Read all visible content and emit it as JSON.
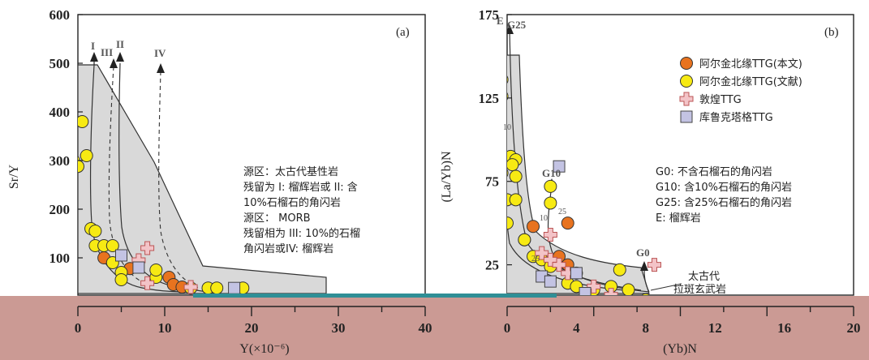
{
  "colors": {
    "orange": "#e8731f",
    "yellow": "#f7ea13",
    "pink": "#f3c3c7",
    "lavender": "#c3c3e3",
    "field": "#d9d9d9",
    "band": "#c7928c",
    "band_accent": "#2f8f96"
  },
  "chart_data": [
    {
      "type": "scatter",
      "panel_label": "(a)",
      "xlabel": "Y(×10⁻⁶)",
      "ylabel": "Sr/Y",
      "xlim": [
        0,
        40
      ],
      "ylim": [
        0,
        600
      ],
      "xticks": [
        "0",
        "10",
        "20",
        "30",
        "40"
      ],
      "yticks": [
        "100",
        "200",
        "300",
        "400",
        "500",
        "600"
      ],
      "curve_labels": [
        "I",
        "III",
        "II",
        "IV"
      ],
      "annotation_lines": [
        "源区：太古代基性岩",
        "残留为 I: 榴辉岩或 II: 含",
        "10%石榴石的角闪岩",
        "源区： MORB",
        "残留相为 III: 10%的石榴",
        "角闪岩或IV: 榴辉岩"
      ],
      "series": [
        {
          "name": "阿尔金北缘TTG(本文)",
          "marker": "circle",
          "color": "orange",
          "points": [
            [
              3,
              100
            ],
            [
              6,
              78
            ],
            [
              10.5,
              60
            ],
            [
              11,
              45
            ],
            [
              12,
              40
            ]
          ]
        },
        {
          "name": "阿尔金北缘TTG(文献)",
          "marker": "circle",
          "color": "yellow",
          "points": [
            [
              0.5,
              380
            ],
            [
              -0.5,
              300
            ],
            [
              0,
              288
            ],
            [
              1,
              310
            ],
            [
              1.5,
              160
            ],
            [
              2,
              155
            ],
            [
              2,
              125
            ],
            [
              3,
              125
            ],
            [
              4,
              125
            ],
            [
              4,
              90
            ],
            [
              5,
              70
            ],
            [
              5,
              55
            ],
            [
              9,
              60
            ],
            [
              9,
              75
            ],
            [
              13,
              38
            ],
            [
              15,
              38
            ],
            [
              16,
              38
            ],
            [
              19,
              38
            ]
          ]
        },
        {
          "name": "敦煌TTG",
          "marker": "cross",
          "color": "pink",
          "points": [
            [
              8,
              120
            ],
            [
              7,
              95
            ],
            [
              8,
              48
            ],
            [
              13,
              40
            ]
          ]
        },
        {
          "name": "库鲁克塔格TTG",
          "marker": "square",
          "color": "lavender",
          "points": [
            [
              5,
              105
            ],
            [
              7,
              80
            ],
            [
              18,
              38
            ]
          ]
        }
      ]
    },
    {
      "type": "scatter",
      "panel_label": "(b)",
      "xlabel": "(Yb)N",
      "ylabel": "(La/Yb)N",
      "xlim": [
        0,
        20
      ],
      "ylim": [
        0,
        175
      ],
      "xticks": [
        "0",
        "4",
        "8",
        "12",
        "16",
        "20"
      ],
      "yticks": [
        "25",
        "75",
        "125",
        "175"
      ],
      "curve_labels": [
        "E",
        "G25",
        "G10",
        "G0"
      ],
      "curve_tick_labels": [
        "10",
        "10",
        "25",
        "25"
      ],
      "legend": [
        "阿尔金北缘TTG(本文)",
        "阿尔金北缘TTG(文献)",
        "敦煌TTG",
        "库鲁克塔格TTG"
      ],
      "annotation_lines": [
        "G0: 不含石榴石的角闪岩",
        "G10: 含10%石榴石的角闪岩",
        "G25: 含25%石榴石的角闪岩",
        "E: 榴辉岩"
      ],
      "field_label_lines": [
        "太古代",
        "拉斑玄武岩"
      ],
      "series": [
        {
          "name": "阿尔金北缘TTG(本文)",
          "marker": "circle",
          "color": "orange",
          "points": [
            [
              1,
              40
            ],
            [
              1.5,
              48
            ],
            [
              3.5,
              50
            ],
            [
              3,
              30
            ],
            [
              3.5,
              25
            ],
            [
              4,
              20
            ]
          ]
        },
        {
          "name": "阿尔金北缘TTG(文献)",
          "marker": "circle",
          "color": "yellow",
          "points": [
            [
              -0.3,
              136
            ],
            [
              -0.3,
              126
            ],
            [
              -0.3,
              80
            ],
            [
              0,
              64
            ],
            [
              0.5,
              64
            ],
            [
              2.5,
              72
            ],
            [
              2.5,
              62
            ],
            [
              0.2,
              90
            ],
            [
              0.5,
              88
            ],
            [
              0.3,
              85
            ],
            [
              0.5,
              78
            ],
            [
              0,
              50
            ],
            [
              1,
              40
            ],
            [
              1.5,
              30
            ],
            [
              2,
              28
            ],
            [
              2.5,
              24
            ],
            [
              3.5,
              14
            ],
            [
              4,
              12
            ],
            [
              5,
              10
            ],
            [
              6,
              12
            ],
            [
              6.5,
              22
            ],
            [
              7,
              10
            ],
            [
              8,
              4
            ]
          ]
        },
        {
          "name": "敦煌TTG",
          "marker": "cross",
          "color": "pink",
          "points": [
            [
              -0.5,
              64
            ],
            [
              2.5,
              43
            ],
            [
              2,
              32
            ],
            [
              2.5,
              28
            ],
            [
              3,
              25
            ],
            [
              3.5,
              20
            ],
            [
              5,
              12
            ],
            [
              6,
              7
            ],
            [
              8.5,
              25
            ],
            [
              9.5,
              0
            ]
          ]
        },
        {
          "name": "库鲁克塔格TTG",
          "marker": "square",
          "color": "lavender",
          "points": [
            [
              3,
              84
            ],
            [
              2,
              18
            ],
            [
              2.5,
              15
            ],
            [
              4,
              20
            ],
            [
              4.5,
              8
            ]
          ]
        }
      ]
    }
  ]
}
